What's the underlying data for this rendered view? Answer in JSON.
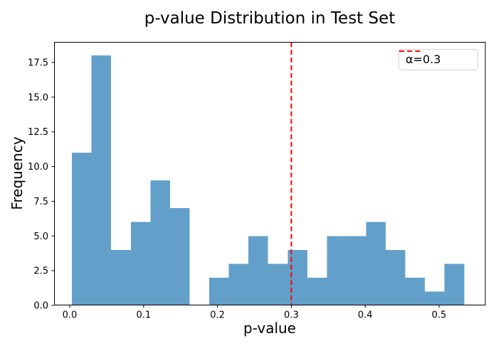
{
  "chart_data": {
    "type": "histogram",
    "title": "p-value Distribution in Test Set",
    "xlabel": "p-value",
    "ylabel": "Frequency",
    "bar_color": "#62a0ca",
    "bin_start": 0.003,
    "bin_width": 0.02655,
    "counts": [
      11,
      18,
      4,
      6,
      9,
      7,
      0,
      2,
      3,
      5,
      3,
      4,
      2,
      5,
      5,
      6,
      4,
      2,
      1,
      3
    ],
    "total_shown_bins": 20,
    "xlim": [
      -0.0212,
      0.5631
    ],
    "ylim": [
      0,
      18.98
    ],
    "grid": false,
    "xticks": {
      "values": [
        0.0,
        0.1,
        0.2,
        0.3,
        0.4,
        0.5
      ],
      "labels": [
        "0.0",
        "0.1",
        "0.2",
        "0.3",
        "0.4",
        "0.5"
      ]
    },
    "yticks": {
      "values": [
        0.0,
        2.5,
        5.0,
        7.5,
        10.0,
        12.5,
        15.0,
        17.5
      ],
      "labels": [
        "0.0",
        "2.5",
        "5.0",
        "7.5",
        "10.0",
        "12.5",
        "15.0",
        "17.5"
      ]
    },
    "vline": {
      "x": 0.3,
      "color": "#ff0000",
      "linestyle": "dashed",
      "label": "α=0.3"
    },
    "legend": {
      "position": "upper right",
      "entries": [
        {
          "label": "α=0.3",
          "color": "#ff0000",
          "linestyle": "dashed"
        }
      ]
    },
    "axis_color": "#000000"
  }
}
